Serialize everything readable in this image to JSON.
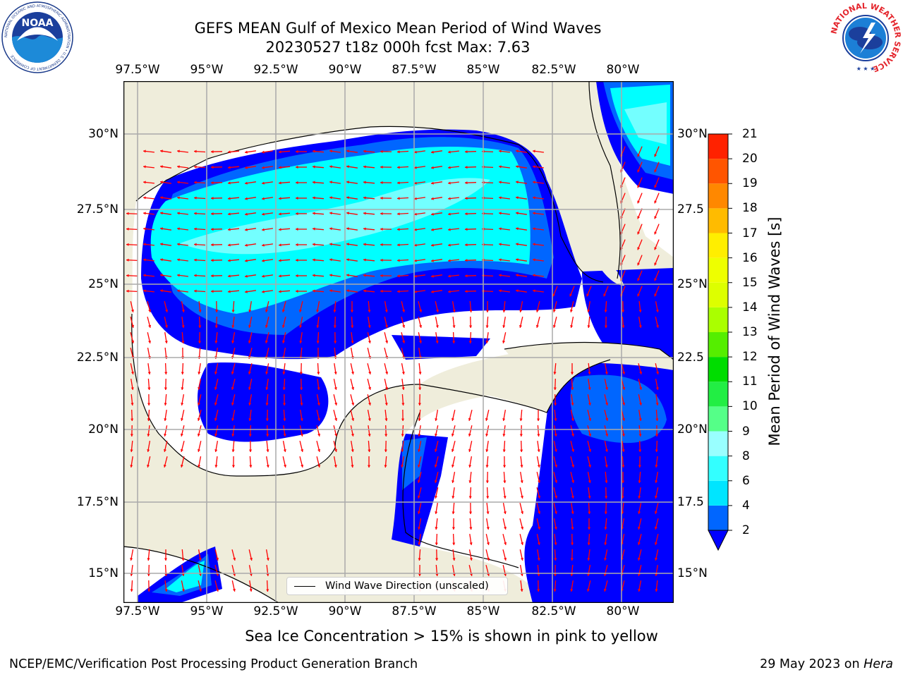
{
  "title": {
    "line1": "GEFS MEAN Gulf of Mexico Mean Period of Wind Waves",
    "line2": "20230527 t18z 000h fcst   Max: 7.63"
  },
  "map": {
    "lon_labels": [
      "97.5°W",
      "95°W",
      "92.5°W",
      "90°W",
      "87.5°W",
      "85°W",
      "82.5°W",
      "80°W"
    ],
    "lat_labels_left": [
      "30°N",
      "27.5°N",
      "25°N",
      "22.5°N",
      "20°N",
      "17.5°N",
      "15°N"
    ],
    "lat_labels_right": [
      "30°N",
      "27.5",
      "25°N",
      "22.5",
      "20°N",
      "17.5",
      "15°N"
    ],
    "land_color": "#efeddb",
    "arrow_color": "#ff0000",
    "legend_label": "Wind Wave Direction (unscaled)"
  },
  "colorbar": {
    "label": "Mean Period of Wind Waves [s]",
    "ticks": [
      "2",
      "4",
      "6",
      "8",
      "9",
      "10",
      "11",
      "12",
      "13",
      "14",
      "15",
      "16",
      "17",
      "18",
      "19",
      "20",
      "21"
    ],
    "colors": [
      "#0066ff",
      "#00e5ff",
      "#33ffff",
      "#99ffff",
      "#55ff88",
      "#22ee44",
      "#00dd00",
      "#55ee00",
      "#aaff00",
      "#ddff00",
      "#eeff00",
      "#ffee00",
      "#ffbb00",
      "#ff8800",
      "#ff5500",
      "#ff2200"
    ],
    "extend_color": "#0000ff"
  },
  "subtitle": "Sea Ice Concentration > 15% is shown in pink to yellow",
  "footer": {
    "left": "NCEP/EMC/Verification Post Processing Product Generation Branch",
    "right_prefix": "29 May 2023 on ",
    "right_host": "Hera"
  },
  "logos": {
    "noaa_text": "NOAA",
    "noaa_ring": "NATIONAL OCEANIC AND ATMOSPHERIC ADMINISTRATION • U.S. DEPARTMENT OF COMMERCE",
    "nws_ring": "NATIONAL WEATHER SERVICE"
  }
}
